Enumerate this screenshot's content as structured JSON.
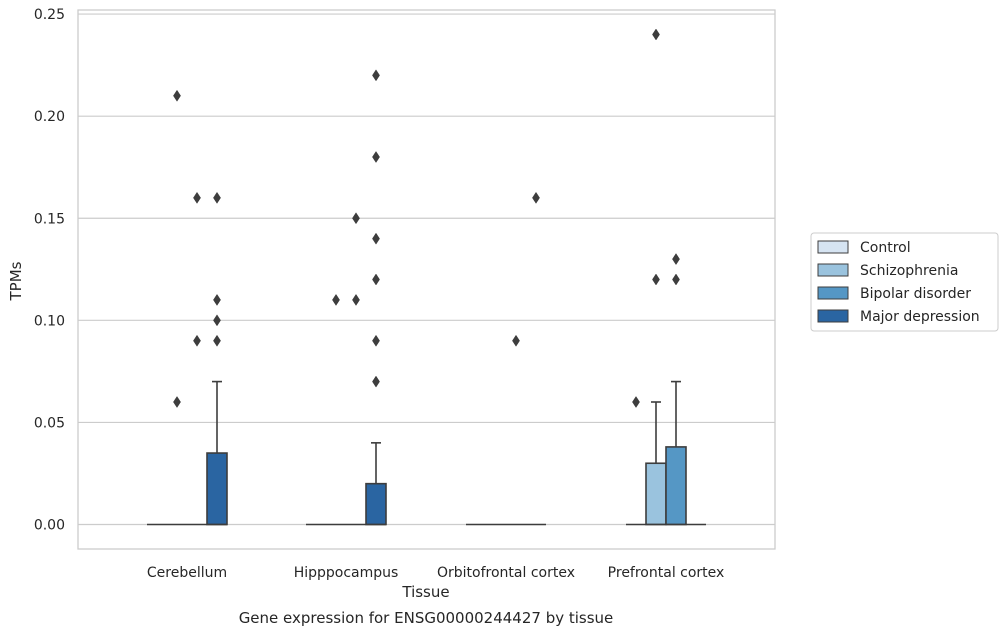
{
  "caption": "Gene expression for ENSG00000244427 by tissue",
  "chart_data": {
    "type": "box",
    "title": "",
    "xlabel": "Tissue",
    "ylabel": "TPMs",
    "ylim": [
      -0.012,
      0.252
    ],
    "yticks": [
      0.0,
      0.05,
      0.1,
      0.15,
      0.2,
      0.25
    ],
    "ytick_labels": [
      "0.00",
      "0.05",
      "0.10",
      "0.15",
      "0.20",
      "0.25"
    ],
    "grid": true,
    "legend_position": "right",
    "categories": [
      "Cerebellum",
      "Hipppocampus",
      "Orbitofrontal cortex",
      "Prefrontal cortex"
    ],
    "series": [
      {
        "name": "Control",
        "color": "#d6e4f2",
        "boxes": [
          {
            "q1": 0,
            "median": 0,
            "q3": 0,
            "whisker_low": 0,
            "whisker_high": 0,
            "outliers": []
          },
          {
            "q1": 0,
            "median": 0,
            "q3": 0,
            "whisker_low": 0,
            "whisker_high": 0,
            "outliers": []
          },
          {
            "q1": 0,
            "median": 0,
            "q3": 0,
            "whisker_low": 0,
            "whisker_high": 0,
            "outliers": []
          },
          {
            "q1": 0,
            "median": 0,
            "q3": 0,
            "whisker_low": 0,
            "whisker_high": 0,
            "outliers": [
              0.06
            ]
          }
        ]
      },
      {
        "name": "Schizophrenia",
        "color": "#9ac3de",
        "boxes": [
          {
            "q1": 0,
            "median": 0,
            "q3": 0,
            "whisker_low": 0,
            "whisker_high": 0,
            "outliers": [
              0.06,
              0.21
            ]
          },
          {
            "q1": 0,
            "median": 0,
            "q3": 0,
            "whisker_low": 0,
            "whisker_high": 0,
            "outliers": [
              0.11
            ]
          },
          {
            "q1": 0,
            "median": 0,
            "q3": 0,
            "whisker_low": 0,
            "whisker_high": 0,
            "outliers": []
          },
          {
            "q1": 0,
            "median": 0,
            "q3": 0.03,
            "whisker_low": 0,
            "whisker_high": 0.06,
            "outliers": [
              0.12,
              0.24
            ]
          }
        ]
      },
      {
        "name": "Bipolar disorder",
        "color": "#5597c5",
        "boxes": [
          {
            "q1": 0,
            "median": 0,
            "q3": 0,
            "whisker_low": 0,
            "whisker_high": 0,
            "outliers": [
              0.09
            ]
          },
          {
            "q1": 0,
            "median": 0,
            "q3": 0,
            "whisker_low": 0,
            "whisker_high": 0,
            "outliers": [
              0.11,
              0.15
            ]
          },
          {
            "q1": 0,
            "median": 0,
            "q3": 0,
            "whisker_low": 0,
            "whisker_high": 0,
            "outliers": [
              0.09
            ]
          },
          {
            "q1": 0,
            "median": 0,
            "q3": 0.038,
            "whisker_low": 0,
            "whisker_high": 0.07,
            "outliers": [
              0.12,
              0.13
            ]
          }
        ]
      },
      {
        "name": "Major depression",
        "color": "#2a65a2",
        "boxes": [
          {
            "q1": 0,
            "median": 0,
            "q3": 0.035,
            "whisker_low": 0,
            "whisker_high": 0.07,
            "outliers": [
              0.09,
              0.1,
              0.11,
              0.16
            ]
          },
          {
            "q1": 0,
            "median": 0,
            "q3": 0.02,
            "whisker_low": 0,
            "whisker_high": 0.04,
            "outliers": [
              0.07,
              0.09,
              0.12,
              0.14,
              0.18,
              0.22
            ]
          },
          {
            "q1": 0,
            "median": 0,
            "q3": 0,
            "whisker_low": 0,
            "whisker_high": 0,
            "outliers": [
              0.16
            ]
          },
          {
            "q1": 0,
            "median": 0,
            "q3": 0,
            "whisker_low": 0,
            "whisker_high": 0,
            "outliers": []
          }
        ]
      }
    ],
    "extra_outliers": [
      {
        "category": 0,
        "series": 2,
        "values": [
          0.16
        ]
      },
      {
        "category": 1,
        "series": 1,
        "values": []
      }
    ]
  }
}
